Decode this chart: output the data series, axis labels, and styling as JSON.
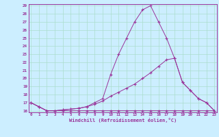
{
  "xlabel": "Windchill (Refroidissement éolien,°C)",
  "x_values": [
    0,
    1,
    2,
    3,
    4,
    5,
    6,
    7,
    8,
    9,
    10,
    11,
    12,
    13,
    14,
    15,
    16,
    17,
    18,
    19,
    20,
    21,
    22,
    23
  ],
  "line1": [
    17.0,
    16.5,
    16.0,
    16.0,
    16.0,
    16.0,
    16.0,
    16.0,
    16.0,
    16.0,
    16.0,
    16.0,
    16.0,
    16.0,
    16.0,
    16.0,
    16.0,
    16.0,
    16.0,
    16.0,
    16.0,
    16.0,
    16.0,
    16.0
  ],
  "line2": [
    17.0,
    16.5,
    16.0,
    16.0,
    16.1,
    16.2,
    16.3,
    16.5,
    16.8,
    17.2,
    17.8,
    18.3,
    18.8,
    19.3,
    20.0,
    20.7,
    21.5,
    22.3,
    22.5,
    19.5,
    18.5,
    17.5,
    17.0,
    16.0
  ],
  "line3": [
    17.0,
    16.5,
    16.0,
    16.0,
    16.1,
    16.2,
    16.3,
    16.5,
    17.0,
    17.5,
    20.5,
    23.0,
    25.0,
    27.0,
    28.5,
    29.0,
    27.0,
    25.0,
    22.5,
    19.5,
    18.5,
    17.5,
    17.0,
    16.0
  ],
  "line_color": "#993399",
  "bg_color": "#cceeff",
  "grid_color": "#aaddcc",
  "ylim_min": 16,
  "ylim_max": 29,
  "xlim_min": 0,
  "xlim_max": 23,
  "yticks": [
    16,
    17,
    18,
    19,
    20,
    21,
    22,
    23,
    24,
    25,
    26,
    27,
    28,
    29
  ],
  "xticks": [
    0,
    1,
    2,
    3,
    4,
    5,
    6,
    7,
    8,
    9,
    10,
    11,
    12,
    13,
    14,
    15,
    16,
    17,
    18,
    19,
    20,
    21,
    22,
    23
  ]
}
